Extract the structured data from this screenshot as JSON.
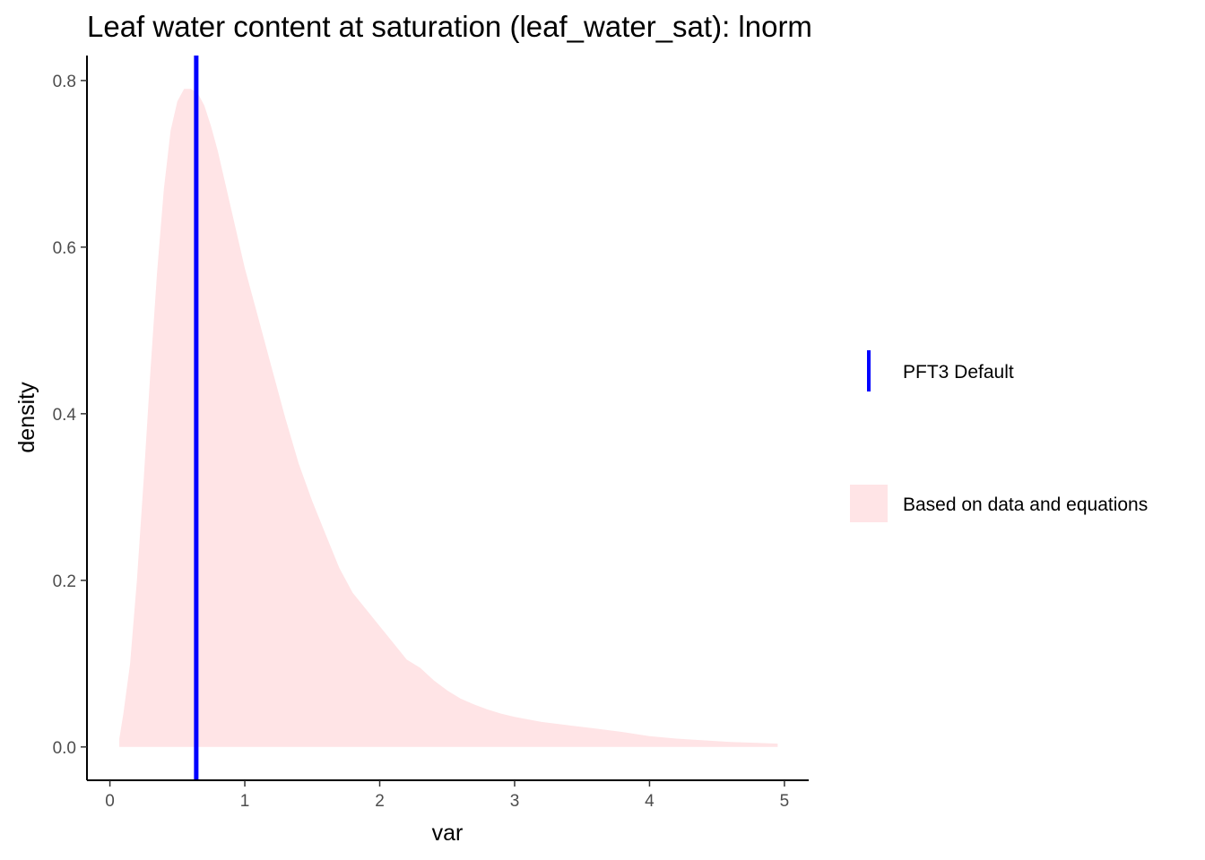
{
  "chart_data": {
    "type": "area",
    "title": "Leaf water content at saturation (leaf_water_sat): lnorm",
    "xlabel": "var",
    "ylabel": "density",
    "xlim": [
      -0.17,
      5.18
    ],
    "ylim": [
      -0.04,
      0.83
    ],
    "x_ticks": [
      0,
      1,
      2,
      3,
      4,
      5
    ],
    "x_tick_labels": [
      "0",
      "1",
      "2",
      "3",
      "4",
      "5"
    ],
    "y_ticks": [
      0.0,
      0.2,
      0.4,
      0.6,
      0.8
    ],
    "y_tick_labels": [
      "0.0",
      "0.2",
      "0.4",
      "0.6",
      "0.8"
    ],
    "grid": false,
    "legend_position": "right",
    "series": [
      {
        "name": "Based on data and equations",
        "kind": "density-area",
        "color": "#ffe4e6",
        "x": [
          0.07,
          0.1,
          0.15,
          0.2,
          0.25,
          0.3,
          0.35,
          0.4,
          0.45,
          0.5,
          0.55,
          0.6,
          0.65,
          0.7,
          0.75,
          0.8,
          0.9,
          1.0,
          1.1,
          1.2,
          1.3,
          1.4,
          1.5,
          1.6,
          1.7,
          1.8,
          1.9,
          2.0,
          2.1,
          2.2,
          2.3,
          2.4,
          2.5,
          2.6,
          2.7,
          2.8,
          2.9,
          3.0,
          3.2,
          3.4,
          3.6,
          3.8,
          4.0,
          4.2,
          4.4,
          4.6,
          4.8,
          4.95
        ],
        "y": [
          0.01,
          0.04,
          0.1,
          0.2,
          0.32,
          0.45,
          0.57,
          0.67,
          0.74,
          0.775,
          0.79,
          0.79,
          0.785,
          0.77,
          0.745,
          0.715,
          0.645,
          0.575,
          0.515,
          0.455,
          0.395,
          0.34,
          0.295,
          0.255,
          0.215,
          0.185,
          0.165,
          0.145,
          0.125,
          0.105,
          0.095,
          0.08,
          0.068,
          0.058,
          0.051,
          0.045,
          0.04,
          0.036,
          0.03,
          0.026,
          0.022,
          0.018,
          0.013,
          0.01,
          0.008,
          0.006,
          0.005,
          0.004
        ]
      },
      {
        "name": "PFT3 Default",
        "kind": "vline",
        "color": "#0000ff",
        "x": 0.64
      }
    ]
  }
}
